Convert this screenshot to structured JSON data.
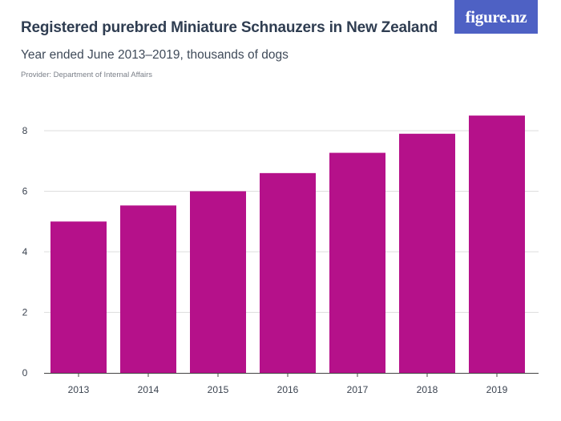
{
  "header": {
    "title": "Registered purebred Miniature Schnauzers in New Zealand",
    "subtitle": "Year ended June 2013–2019, thousands of dogs",
    "provider": "Provider: Department of Internal Affairs",
    "logo_text": "figure.nz"
  },
  "colors": {
    "bar": "#b5118a",
    "grid": "#dedede",
    "axis": "#444444",
    "logo_bg": "#4e61c4"
  },
  "chart_data": {
    "type": "bar",
    "categories": [
      "2013",
      "2014",
      "2015",
      "2016",
      "2017",
      "2018",
      "2019"
    ],
    "values": [
      5.0,
      5.53,
      6.0,
      6.6,
      7.27,
      7.9,
      8.5
    ],
    "title": "Registered purebred Miniature Schnauzers in New Zealand",
    "xlabel": "",
    "ylabel": "",
    "ylim": [
      0,
      8
    ],
    "yticks": [
      0,
      2,
      4,
      6,
      8
    ],
    "grid": true,
    "legend": "none"
  }
}
